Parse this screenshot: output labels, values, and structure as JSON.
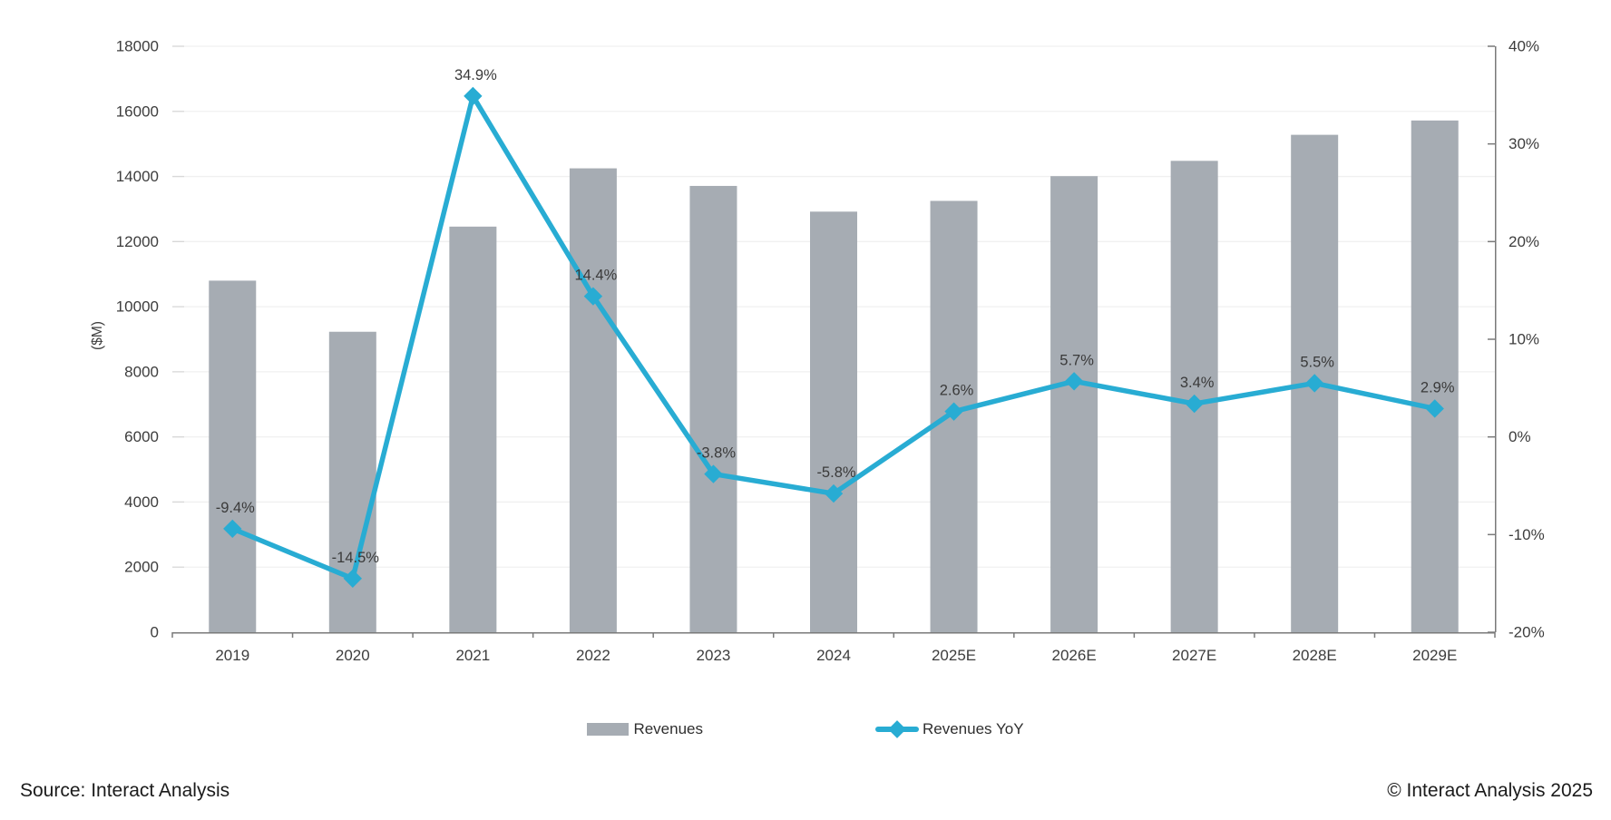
{
  "chart_data": {
    "type": "bar",
    "subtype": "combo-bar-line",
    "categories": [
      "2019",
      "2020",
      "2021",
      "2022",
      "2023",
      "2024",
      "2025E",
      "2026E",
      "2027E",
      "2028E",
      "2029E"
    ],
    "series": [
      {
        "name": "Revenues",
        "type": "bar",
        "axis": "left",
        "values": [
          10800,
          9230,
          12460,
          14250,
          13710,
          12920,
          13250,
          14010,
          14480,
          15280,
          15720
        ]
      },
      {
        "name": "Revenues YoY",
        "type": "line",
        "axis": "right",
        "values": [
          -9.4,
          -14.5,
          34.9,
          14.4,
          -3.8,
          -5.8,
          2.6,
          5.7,
          3.4,
          5.5,
          2.9
        ],
        "point_labels": [
          "-9.4%",
          "-14.5%",
          "34.9%",
          "14.4%",
          "-3.8%",
          "-5.8%",
          "2.6%",
          "5.7%",
          "3.4%",
          "5.5%",
          "2.9%"
        ]
      }
    ],
    "left_axis": {
      "title": "($M)",
      "min": 0,
      "max": 18000,
      "step": 2000,
      "tick_labels": [
        "0",
        "2000",
        "4000",
        "6000",
        "8000",
        "10000",
        "12000",
        "14000",
        "16000",
        "18000"
      ]
    },
    "right_axis": {
      "min": -20,
      "max": 40,
      "step": 10,
      "tick_labels": [
        "-20%",
        "-10%",
        "0%",
        "10%",
        "20%",
        "30%",
        "40%"
      ]
    },
    "grid": "horizontal",
    "legend_position": "bottom",
    "colors": {
      "bar": "#a6acb3",
      "line": "#28acd3",
      "grid": "#f0f0f0",
      "grid_stub": "#d8d8d8",
      "axis": "#7a7a7a",
      "tick_text": "#3d3d3d",
      "data_label": "#3a3a3a"
    }
  },
  "legend": {
    "items": [
      {
        "label": "Revenues",
        "swatch": "bar"
      },
      {
        "label": "Revenues YoY",
        "swatch": "line-diamond"
      }
    ]
  },
  "footer": {
    "source_label": "Source: Interact Analysis",
    "copyright_label": "© Interact Analysis 2025"
  }
}
